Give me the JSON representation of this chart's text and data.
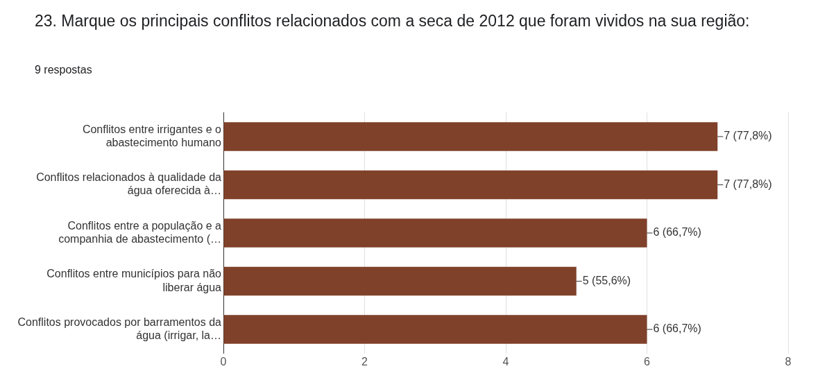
{
  "chart_data": {
    "type": "bar",
    "orientation": "horizontal",
    "title": "23. Marque os principais conflitos relacionados com a seca de 2012 que foram vividos na sua região:",
    "subtitle": "9 respostas",
    "categories": [
      "Conflitos entre irrigantes e o abastecimento humano",
      "Conflitos relacionados à qualidade da água oferecida à…",
      "Conflitos entre a população e a companhia de abastecimento (…",
      "Conflitos entre municípios para não liberar água",
      "Conflitos provocados por barramentos da água (irrigar, la…"
    ],
    "values": [
      7,
      7,
      6,
      5,
      6
    ],
    "value_labels": [
      "7 (77,8%)",
      "7 (77,8%)",
      "6 (66,7%)",
      "5 (55,6%)",
      "6 (66,7%)"
    ],
    "color": "#80412a",
    "xlim": [
      0,
      8
    ],
    "xticks": [
      0,
      2,
      4,
      6,
      8
    ],
    "grid": "x",
    "legend": false
  }
}
